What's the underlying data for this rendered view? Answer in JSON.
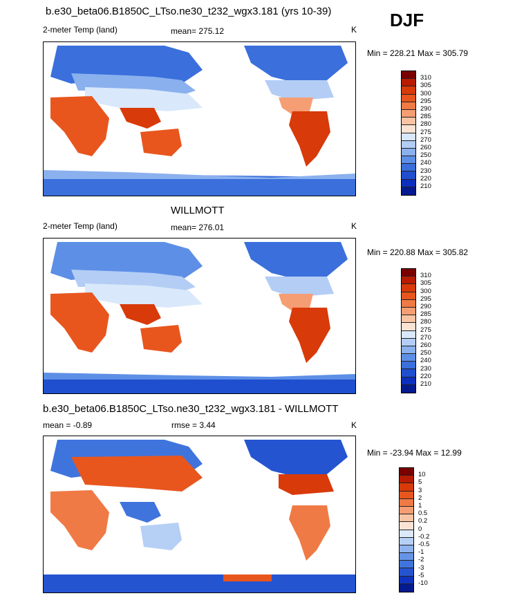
{
  "season": "DJF",
  "panels": [
    {
      "title": "b.e30_beta06.B1850C_LTso.ne30_t232_wgx3.181 (yrs 10-39)",
      "variable": "2-meter Temp (land)",
      "stat": "mean= 275.12",
      "units": "K",
      "minmax": "Min = 228.21 Max = 305.79",
      "colorbar_labels": [
        "310",
        "305",
        "300",
        "295",
        "290",
        "285",
        "280",
        "275",
        "270",
        "260",
        "250",
        "240",
        "230",
        "220",
        "210"
      ]
    },
    {
      "title": "WILLMOTT",
      "variable": "2-meter Temp (land)",
      "stat": "mean= 276.01",
      "units": "K",
      "minmax": "Min = 220.88 Max = 305.82",
      "colorbar_labels": [
        "310",
        "305",
        "300",
        "295",
        "290",
        "285",
        "280",
        "275",
        "270",
        "260",
        "250",
        "240",
        "230",
        "220",
        "210"
      ]
    },
    {
      "title": "b.e30_beta06.B1850C_LTso.ne30_t232_wgx3.181 - WILLMOTT",
      "variable": "mean =  -0.89",
      "stat": "rmse =   3.44",
      "units": "K",
      "minmax": "Min = -23.94 Max =  12.99",
      "colorbar_labels": [
        "10",
        "5",
        "3",
        "2",
        "1",
        "0.5",
        "0.2",
        "0",
        "-0.2",
        "-0.5",
        "-1",
        "-2",
        "-3",
        "-5",
        "-10"
      ]
    }
  ],
  "colors": {
    "abs_scale": [
      "#7a0000",
      "#b81b00",
      "#d83a0a",
      "#e8561e",
      "#f07a45",
      "#f69e73",
      "#f9c4a3",
      "#fbe3d4",
      "#d9e8fb",
      "#b3cdf5",
      "#8ab0ee",
      "#5d8fe6",
      "#3a6fdc",
      "#1f4fcf",
      "#0d2fbe",
      "#041a8e"
    ],
    "diff_scale": [
      "#7a0000",
      "#b81b00",
      "#d83a0a",
      "#e8561e",
      "#f07a45",
      "#f69e73",
      "#f9c4a3",
      "#fbe3d4",
      "#dce9fb",
      "#b6cff5",
      "#8fb3ee",
      "#6594e7",
      "#3f74dd",
      "#2554d0",
      "#0f33bf",
      "#041a8e"
    ]
  }
}
